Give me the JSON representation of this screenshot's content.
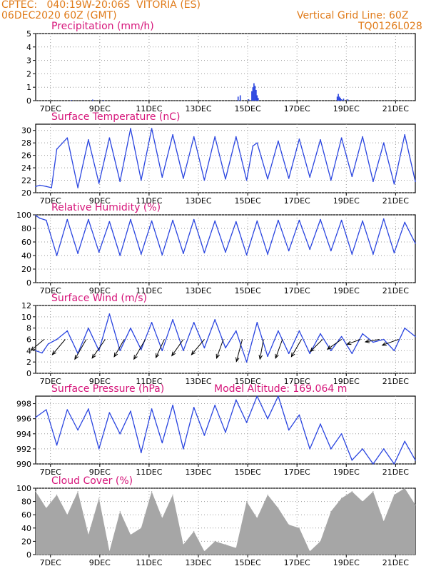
{
  "header": {
    "line1_left": "CPTEC:   040:19W-20:06S  VITORIA (ES)",
    "line2_left": "06DEC2020 60Z (GMT)",
    "line1_right": "Vertical Grid Line: 60Z",
    "line2_right": "TQ0126L028"
  },
  "colors": {
    "series": "#2a45e0",
    "cloud": "#a6a6a6",
    "title": "#d6157a",
    "header": "#e07b1a"
  },
  "chart_data": [
    {
      "id": "precip",
      "type": "bar",
      "title": "Precipitation (mm/h)",
      "ylim": [
        0,
        5
      ],
      "yticks": [
        0,
        1,
        2,
        3,
        4,
        5
      ],
      "x_dates": [
        "7DEC",
        "9DEC",
        "11DEC",
        "13DEC",
        "15DEC",
        "17DEC",
        "19DEC",
        "21DEC"
      ],
      "x": [
        1.7,
        2.7,
        3.2,
        9.6,
        9.7,
        10.1,
        10.25,
        10.3,
        10.35,
        10.4,
        10.45,
        10.5,
        10.55,
        14.3,
        14.35,
        14.4,
        14.45,
        14.5,
        14.6,
        14.8
      ],
      "values": [
        0.05,
        0.08,
        0.05,
        0.3,
        0.4,
        0.1,
        0.7,
        1.0,
        1.3,
        1.1,
        0.8,
        0.4,
        0.2,
        0.3,
        0.5,
        0.3,
        0.2,
        0.1,
        0.15,
        0.1
      ]
    },
    {
      "id": "temp",
      "type": "line",
      "title": "Surface Temperature (nC)",
      "ylim": [
        20,
        31
      ],
      "yticks": [
        20,
        22,
        24,
        26,
        28,
        30
      ],
      "x_dates": [
        "7DEC",
        "9DEC",
        "11DEC",
        "13DEC",
        "15DEC",
        "17DEC",
        "19DEC",
        "21DEC"
      ],
      "x": [
        0,
        0.2,
        0.5,
        0.75,
        1.0,
        1.5,
        2.0,
        2.5,
        3.0,
        3.5,
        4.0,
        4.5,
        5.0,
        5.5,
        6.0,
        6.5,
        7.0,
        7.5,
        8.0,
        8.5,
        9.0,
        9.5,
        10.0,
        10.3,
        10.5,
        11.0,
        11.5,
        12.0,
        12.5,
        13.0,
        13.5,
        14.0,
        14.5,
        15.0,
        15.5,
        16.0,
        16.5,
        17.0,
        17.5,
        18.0
      ],
      "values": [
        21,
        21.2,
        21.0,
        20.8,
        27.0,
        28.8,
        20.8,
        28.5,
        21.5,
        28.8,
        21.8,
        30.3,
        22.0,
        30.3,
        22.5,
        29.3,
        22.3,
        29.0,
        22.0,
        29.0,
        22.2,
        29.0,
        22.0,
        27.5,
        28.0,
        22.2,
        28.3,
        22.3,
        28.6,
        22.5,
        28.5,
        22.0,
        28.8,
        22.6,
        29.0,
        21.8,
        28.0,
        21.4,
        29.3,
        21.8
      ]
    },
    {
      "id": "rh",
      "type": "line",
      "title": "Relative Humidity (%)",
      "ylim": [
        0,
        100
      ],
      "yticks": [
        0,
        20,
        40,
        60,
        80,
        100
      ],
      "x_dates": [
        "7DEC",
        "9DEC",
        "11DEC",
        "13DEC",
        "15DEC",
        "17DEC",
        "19DEC",
        "21DEC"
      ],
      "x": [
        0,
        0.2,
        0.5,
        1.0,
        1.5,
        2.0,
        2.5,
        3.0,
        3.5,
        4.0,
        4.5,
        5.0,
        5.5,
        6.0,
        6.5,
        7.0,
        7.5,
        8.0,
        8.5,
        9.0,
        9.5,
        10.0,
        10.5,
        11.0,
        11.5,
        12.0,
        12.5,
        13.0,
        13.5,
        14.0,
        14.5,
        15.0,
        15.5,
        16.0,
        16.5,
        17.0,
        17.5,
        18.0
      ],
      "values": [
        99,
        95,
        92,
        40,
        93,
        43,
        93,
        45,
        90,
        40,
        93,
        42,
        91,
        41,
        92,
        43,
        93,
        44,
        91,
        45,
        90,
        41,
        91,
        42,
        92,
        47,
        92,
        49,
        93,
        47,
        92,
        42,
        91,
        42,
        94,
        44,
        89,
        58
      ]
    },
    {
      "id": "wind",
      "type": "line",
      "title": "Surface Wind (m/s)",
      "ylim": [
        0,
        12
      ],
      "yticks": [
        0,
        2,
        4,
        6,
        8,
        10,
        12
      ],
      "x_dates": [
        "7DEC",
        "9DEC",
        "11DEC",
        "13DEC",
        "15DEC",
        "17DEC",
        "19DEC",
        "21DEC"
      ],
      "x": [
        0,
        0.3,
        0.6,
        1.0,
        1.5,
        2.0,
        2.5,
        3.0,
        3.5,
        4.0,
        4.5,
        5.0,
        5.5,
        6.0,
        6.5,
        7.0,
        7.5,
        8.0,
        8.5,
        9.0,
        9.5,
        10.0,
        10.5,
        11.0,
        11.5,
        12.0,
        12.5,
        13.0,
        13.5,
        14.0,
        14.5,
        15.0,
        15.5,
        16.0,
        16.5,
        17.0,
        17.5,
        18.0
      ],
      "values": [
        4.0,
        3.6,
        5.2,
        6.0,
        7.5,
        3.5,
        8.0,
        4.0,
        10.5,
        4.0,
        8.0,
        4.2,
        9.0,
        4.0,
        9.5,
        4.0,
        9.0,
        4.5,
        9.5,
        4.5,
        7.5,
        2.0,
        9.0,
        3.0,
        7.5,
        3.5,
        7.5,
        3.5,
        7.0,
        4.0,
        6.5,
        3.5,
        7.0,
        5.5,
        6.0,
        4.0,
        8.0,
        6.5
      ],
      "arrows_x": [
        0.4,
        1.4,
        2.4,
        3.3,
        4.2,
        5.2,
        6.1,
        7.0,
        8.0,
        8.9,
        9.8,
        10.8,
        11.7,
        12.6,
        13.6,
        14.5,
        15.4,
        16.3,
        17.2
      ],
      "arrows_dir_deg": [
        230,
        220,
        210,
        215,
        210,
        210,
        205,
        215,
        220,
        200,
        195,
        190,
        200,
        210,
        225,
        235,
        250,
        260,
        250
      ],
      "arrows_speed": [
        4,
        5,
        6,
        6,
        5,
        6,
        5,
        5,
        5,
        5,
        6,
        5,
        5,
        5,
        4,
        4,
        3,
        3,
        4
      ]
    },
    {
      "id": "pres",
      "type": "line",
      "title": "Surface Pressure (hPa)",
      "subtitle": "Model Altitude: 169.064 m",
      "ylim": [
        990,
        999
      ],
      "yticks": [
        990,
        992,
        994,
        996,
        998
      ],
      "x_dates": [
        "7DEC",
        "9DEC",
        "11DEC",
        "13DEC",
        "15DEC",
        "17DEC",
        "19DEC",
        "21DEC"
      ],
      "x": [
        0,
        0.5,
        1.0,
        1.5,
        2.0,
        2.5,
        3.0,
        3.5,
        4.0,
        4.5,
        5.0,
        5.5,
        6.0,
        6.5,
        7.0,
        7.5,
        8.0,
        8.5,
        9.0,
        9.5,
        10.0,
        10.5,
        11.0,
        11.5,
        12.0,
        12.5,
        13.0,
        13.5,
        14.0,
        14.5,
        15.0,
        15.5,
        16.0,
        16.5,
        17.0,
        17.5,
        18.0
      ],
      "values": [
        996.2,
        997.2,
        992.5,
        997.2,
        994.5,
        997.3,
        992.0,
        996.8,
        994.0,
        997.0,
        991.5,
        997.3,
        992.8,
        997.8,
        992.0,
        997.5,
        993.8,
        997.8,
        994.2,
        998.5,
        995.5,
        999.0,
        996.0,
        999.0,
        994.5,
        996.5,
        992.0,
        995.3,
        992.0,
        994.0,
        990.5,
        992.0,
        990.0,
        992.0,
        990.0,
        993.0,
        990.5
      ]
    },
    {
      "id": "cloud",
      "type": "area",
      "title": "Cloud Cover (%)",
      "ylim": [
        0,
        100
      ],
      "yticks": [
        0,
        20,
        40,
        60,
        80,
        100
      ],
      "x_dates": [
        "7DEC",
        "9DEC",
        "11DEC",
        "13DEC",
        "15DEC",
        "17DEC",
        "19DEC",
        "21DEC"
      ],
      "x": [
        0,
        0.5,
        1.0,
        1.5,
        2.0,
        2.5,
        3.0,
        3.5,
        4.0,
        4.5,
        5.0,
        5.5,
        6.0,
        6.5,
        7.0,
        7.5,
        8.0,
        8.5,
        9.0,
        9.5,
        10.0,
        10.5,
        11.0,
        11.5,
        12.0,
        12.5,
        13.0,
        13.5,
        14.0,
        14.5,
        15.0,
        15.5,
        16.0,
        16.5,
        17.0,
        17.5,
        18.0
      ],
      "values": [
        95,
        70,
        90,
        60,
        95,
        30,
        85,
        5,
        65,
        30,
        40,
        95,
        55,
        90,
        15,
        35,
        5,
        20,
        15,
        10,
        80,
        55,
        90,
        70,
        45,
        40,
        5,
        20,
        65,
        85,
        95,
        80,
        95,
        50,
        90,
        100,
        75
      ]
    }
  ]
}
